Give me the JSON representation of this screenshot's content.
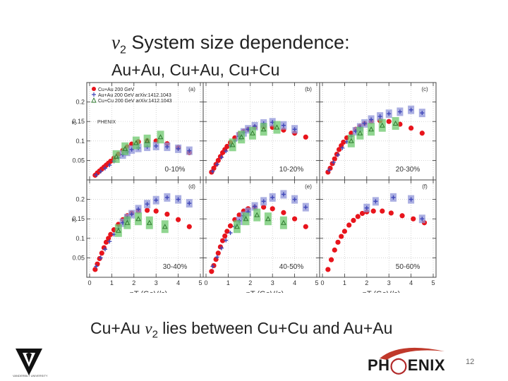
{
  "slide": {
    "title_italic": "v",
    "title_sub": "2",
    "title_rest": " System size dependence:",
    "subtitle": "Au+Au, Cu+Au, Cu+Cu",
    "caption_pre": "Cu+Au ",
    "caption_italic": "v",
    "caption_sub": "2",
    "caption_post": " lies between Cu+Cu and Au+Au",
    "slide_number": "12",
    "logo_text_left": "PH",
    "logo_text_right": "ENIX",
    "vu_caption": "VANDERBILT UNIVERSITY"
  },
  "colors": {
    "cuau": "#e8141c",
    "auau_box": "#8f94d8",
    "auau_marker": "#3f46b8",
    "cucu_box": "#6cc86c",
    "cucu_marker": "#2f7a2f",
    "text": "#222222"
  },
  "chart_data": {
    "type": "scatter",
    "legend": {
      "position": "top-left",
      "entries": [
        "Cu+Au 200 GeV",
        "Au+Au 200 GeV arXiv:1412.1043",
        "Cu+Cu 200 GeV arXiv:1412.1043"
      ],
      "experiment": "PHENIX"
    },
    "xlabel": "p_T (GeV/c)",
    "ylabel": "v_2",
    "xlim": [
      0,
      5
    ],
    "ylim": [
      0,
      0.25
    ],
    "xticks": [
      0,
      1,
      2,
      3,
      4,
      5
    ],
    "yticks": [
      0.05,
      0.1,
      0.15,
      0.2
    ],
    "panels": [
      {
        "label": "(a)",
        "centrality": "0-10%",
        "series": [
          {
            "name": "Cu+Au 200 GeV",
            "marker": "circle",
            "x": [
              0.25,
              0.35,
              0.45,
              0.55,
              0.65,
              0.75,
              0.85,
              0.95,
              1.1,
              1.3,
              1.5,
              1.7,
              1.9,
              2.2,
              2.6,
              3.0,
              3.5,
              4.0,
              4.5
            ],
            "y": [
              0.012,
              0.018,
              0.023,
              0.028,
              0.033,
              0.038,
              0.043,
              0.048,
              0.056,
              0.066,
              0.076,
              0.085,
              0.092,
              0.098,
              0.101,
              0.1,
              0.093,
              0.083,
              0.07
            ]
          },
          {
            "name": "Au+Au 200 GeV arXiv:1412.1043",
            "marker": "cross",
            "x": [
              0.3,
              0.5,
              0.7,
              0.9,
              1.1,
              1.3,
              1.5,
              1.7,
              1.9,
              2.2,
              2.6,
              3.0,
              3.5,
              4.0,
              4.5
            ],
            "y": [
              0.013,
              0.022,
              0.03,
              0.038,
              0.048,
              0.057,
              0.065,
              0.072,
              0.078,
              0.082,
              0.085,
              0.087,
              0.085,
              0.08,
              0.075
            ]
          },
          {
            "name": "Cu+Cu 200 GeV arXiv:1412.1043",
            "marker": "triangle",
            "x": [
              1.2,
              1.6,
              2.1,
              2.6,
              3.2
            ],
            "y": [
              0.06,
              0.08,
              0.095,
              0.1,
              0.11
            ]
          }
        ]
      },
      {
        "label": "(b)",
        "centrality": "10-20%",
        "series": [
          {
            "name": "Cu+Au 200 GeV",
            "marker": "circle",
            "x": [
              0.25,
              0.35,
              0.45,
              0.55,
              0.65,
              0.75,
              0.85,
              0.95,
              1.1,
              1.3,
              1.5,
              1.7,
              1.9,
              2.2,
              2.6,
              3.0,
              3.5,
              4.0,
              4.5
            ],
            "y": [
              0.02,
              0.03,
              0.04,
              0.05,
              0.06,
              0.07,
              0.078,
              0.086,
              0.096,
              0.108,
              0.118,
              0.125,
              0.13,
              0.135,
              0.137,
              0.135,
              0.128,
              0.12,
              0.11
            ]
          },
          {
            "name": "Au+Au 200 GeV arXiv:1412.1043",
            "marker": "cross",
            "x": [
              0.3,
              0.5,
              0.7,
              0.9,
              1.1,
              1.3,
              1.5,
              1.7,
              1.9,
              2.2,
              2.6,
              3.0,
              3.5,
              4.0
            ],
            "y": [
              0.022,
              0.04,
              0.058,
              0.074,
              0.088,
              0.1,
              0.112,
              0.122,
              0.13,
              0.138,
              0.145,
              0.148,
              0.14,
              0.13
            ]
          },
          {
            "name": "Cu+Cu 200 GeV arXiv:1412.1043",
            "marker": "triangle",
            "x": [
              1.2,
              1.6,
              2.1,
              2.6,
              3.2
            ],
            "y": [
              0.09,
              0.11,
              0.12,
              0.13,
              0.135
            ]
          }
        ]
      },
      {
        "label": "(c)",
        "centrality": "20-30%",
        "series": [
          {
            "name": "Cu+Au 200 GeV",
            "marker": "circle",
            "x": [
              0.25,
              0.35,
              0.45,
              0.55,
              0.65,
              0.75,
              0.85,
              0.95,
              1.1,
              1.3,
              1.5,
              1.7,
              1.9,
              2.2,
              2.6,
              3.0,
              3.5,
              4.0,
              4.5
            ],
            "y": [
              0.02,
              0.03,
              0.042,
              0.054,
              0.066,
              0.078,
              0.088,
              0.097,
              0.108,
              0.12,
              0.13,
              0.138,
              0.145,
              0.15,
              0.152,
              0.15,
              0.143,
              0.133,
              0.12
            ]
          },
          {
            "name": "Au+Au 200 GeV arXiv:1412.1043",
            "marker": "cross",
            "x": [
              0.3,
              0.5,
              0.7,
              0.9,
              1.1,
              1.3,
              1.5,
              1.7,
              1.9,
              2.2,
              2.6,
              3.0,
              3.5,
              4.0,
              4.5
            ],
            "y": [
              0.025,
              0.045,
              0.064,
              0.082,
              0.098,
              0.112,
              0.125,
              0.135,
              0.145,
              0.155,
              0.163,
              0.17,
              0.175,
              0.18,
              0.172
            ]
          },
          {
            "name": "Cu+Cu 200 GeV arXiv:1412.1043",
            "marker": "triangle",
            "x": [
              1.3,
              1.7,
              2.2,
              2.7,
              3.3
            ],
            "y": [
              0.1,
              0.12,
              0.13,
              0.14,
              0.145
            ]
          }
        ]
      },
      {
        "label": "(d)",
        "centrality": "30-40%",
        "series": [
          {
            "name": "Cu+Au 200 GeV",
            "marker": "circle",
            "x": [
              0.25,
              0.35,
              0.45,
              0.55,
              0.65,
              0.75,
              0.85,
              0.95,
              1.1,
              1.3,
              1.5,
              1.7,
              1.9,
              2.2,
              2.6,
              3.0,
              3.5,
              4.0,
              4.5
            ],
            "y": [
              0.02,
              0.034,
              0.048,
              0.062,
              0.076,
              0.09,
              0.1,
              0.11,
              0.122,
              0.136,
              0.148,
              0.158,
              0.165,
              0.17,
              0.172,
              0.17,
              0.162,
              0.148,
              0.13
            ]
          },
          {
            "name": "Au+Au 200 GeV arXiv:1412.1043",
            "marker": "cross",
            "x": [
              0.3,
              0.5,
              0.7,
              0.9,
              1.1,
              1.3,
              1.5,
              1.7,
              1.9,
              2.2,
              2.6,
              3.0,
              3.5,
              4.0,
              4.5
            ],
            "y": [
              0.028,
              0.05,
              0.072,
              0.092,
              0.11,
              0.126,
              0.14,
              0.152,
              0.162,
              0.175,
              0.188,
              0.198,
              0.205,
              0.2,
              0.19
            ]
          },
          {
            "name": "Cu+Cu 200 GeV arXiv:1412.1043",
            "marker": "triangle",
            "x": [
              1.3,
              1.7,
              2.2,
              2.7,
              3.4
            ],
            "y": [
              0.12,
              0.14,
              0.15,
              0.14,
              0.13
            ]
          }
        ]
      },
      {
        "label": "(e)",
        "centrality": "40-50%",
        "series": [
          {
            "name": "Cu+Au 200 GeV",
            "marker": "circle",
            "x": [
              0.25,
              0.35,
              0.45,
              0.55,
              0.65,
              0.75,
              0.85,
              0.95,
              1.1,
              1.3,
              1.5,
              1.7,
              1.9,
              2.2,
              2.6,
              3.0,
              3.5,
              4.0,
              4.5
            ],
            "y": [
              0.015,
              0.03,
              0.046,
              0.062,
              0.078,
              0.094,
              0.106,
              0.118,
              0.132,
              0.148,
              0.16,
              0.17,
              0.176,
              0.18,
              0.18,
              0.176,
              0.166,
              0.15,
              0.13
            ]
          },
          {
            "name": "Au+Au 200 GeV arXiv:1412.1043",
            "marker": "cross",
            "x": [
              0.3,
              0.5,
              0.7,
              0.9,
              1.1,
              1.3,
              1.5,
              1.7,
              1.9,
              2.2,
              2.6,
              3.0,
              3.5,
              4.0,
              4.5
            ],
            "y": [
              0.028,
              0.052,
              0.075,
              0.095,
              0.114,
              0.13,
              0.145,
              0.158,
              0.168,
              0.182,
              0.195,
              0.205,
              0.213,
              0.2,
              0.18
            ]
          },
          {
            "name": "Cu+Cu 200 GeV arXiv:1412.1043",
            "marker": "triangle",
            "x": [
              1.4,
              1.8,
              2.3,
              2.8,
              3.5
            ],
            "y": [
              0.13,
              0.15,
              0.16,
              0.15,
              0.14
            ]
          }
        ]
      },
      {
        "label": "(f)",
        "centrality": "50-60%",
        "series": [
          {
            "name": "Cu+Au 200 GeV",
            "marker": "circle",
            "x": [
              0.25,
              0.4,
              0.55,
              0.7,
              0.85,
              1.0,
              1.2,
              1.4,
              1.6,
              1.8,
              2.0,
              2.3,
              2.7,
              3.1,
              3.6,
              4.1,
              4.6
            ],
            "y": [
              0.02,
              0.045,
              0.07,
              0.09,
              0.105,
              0.118,
              0.134,
              0.146,
              0.156,
              0.164,
              0.168,
              0.17,
              0.17,
              0.165,
              0.158,
              0.15,
              0.14
            ]
          },
          {
            "name": "Au+Au 200 GeV arXiv:1412.1043",
            "marker": "cross",
            "x": [
              2.0,
              2.4,
              3.2,
              4.0,
              4.5
            ],
            "y": [
              0.178,
              0.195,
              0.205,
              0.2,
              0.15
            ]
          }
        ]
      }
    ]
  }
}
